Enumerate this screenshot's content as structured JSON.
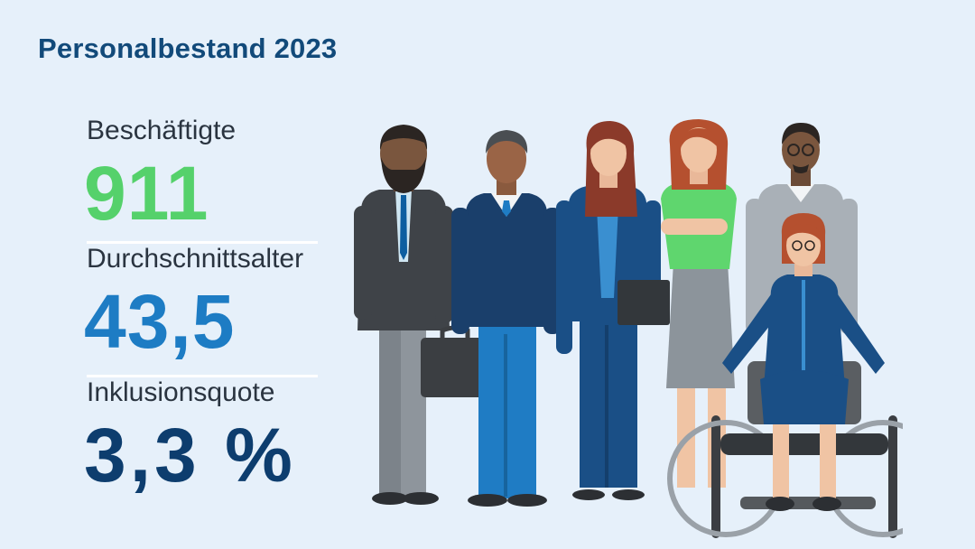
{
  "title": "Personalbestand 2023",
  "stats": [
    {
      "label": "Beschäftigte",
      "value": "911",
      "color": "#55d16b"
    },
    {
      "label": "Durchschnittsalter",
      "value": "43,5",
      "color": "#1d7cc4"
    },
    {
      "label": "Inklusionsquote",
      "value": "3,3 %",
      "color": "#0d3d6e"
    }
  ],
  "illustration": {
    "people": [
      "bearded-man-suit",
      "man-sweater",
      "woman-blazer",
      "woman-green-top",
      "man-glasses-grey-sweater",
      "woman-wheelchair"
    ]
  }
}
